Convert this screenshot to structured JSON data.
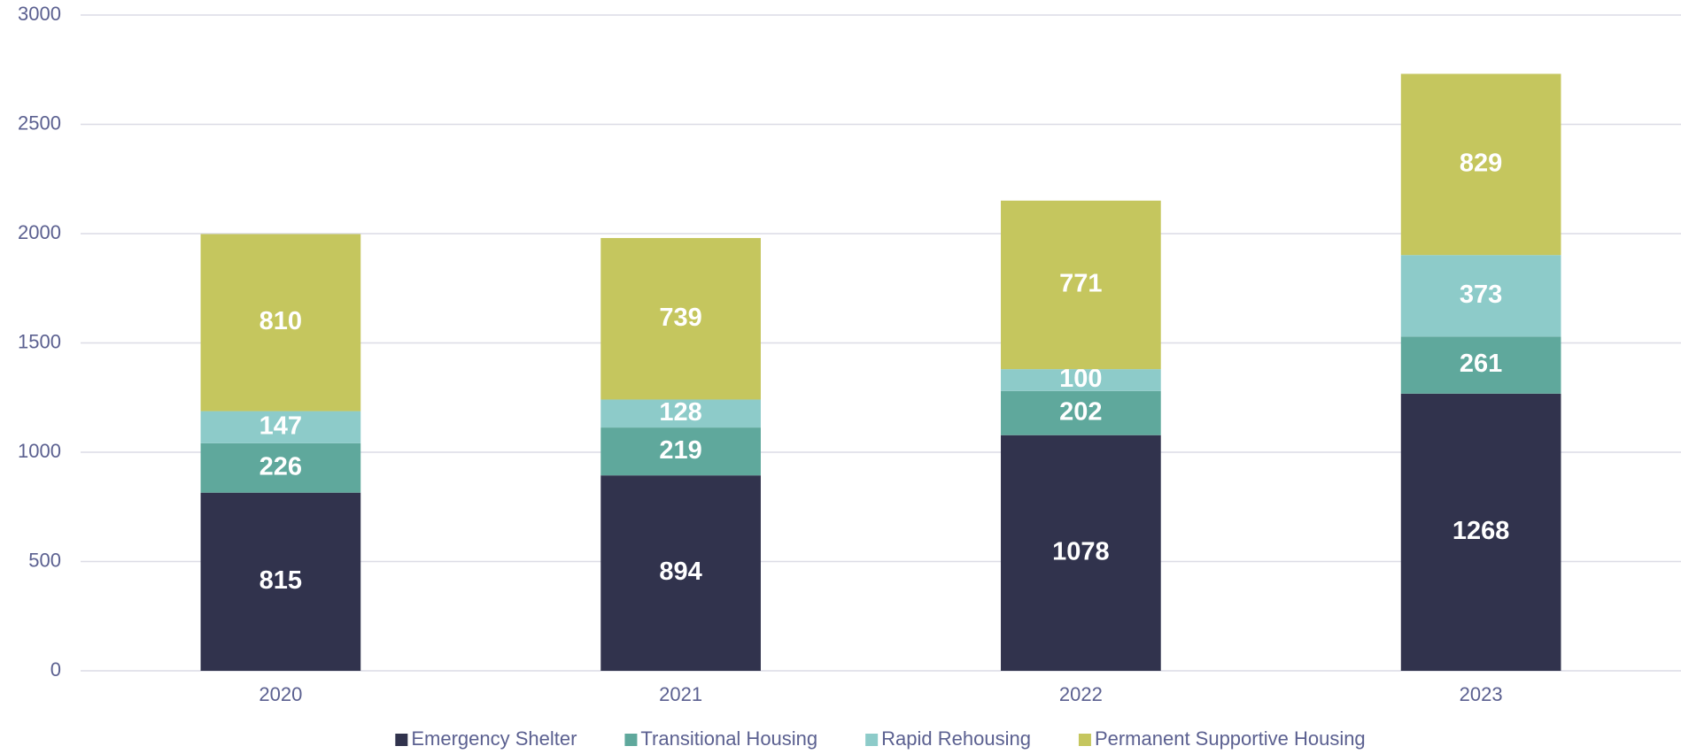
{
  "chart_data": {
    "type": "stacked_bar",
    "categories": [
      "2020",
      "2021",
      "2022",
      "2023"
    ],
    "series": [
      {
        "name": "Emergency Shelter",
        "color": "#31334d",
        "values": [
          815,
          894,
          1078,
          1268
        ]
      },
      {
        "name": "Transitional Housing",
        "color": "#5fa89c",
        "values": [
          226,
          219,
          202,
          261
        ]
      },
      {
        "name": "Rapid Rehousing",
        "color": "#8dcbc9",
        "values": [
          147,
          128,
          100,
          373
        ]
      },
      {
        "name": "Permanent Supportive Housing",
        "color": "#c5c65e",
        "values": [
          810,
          739,
          771,
          829
        ]
      }
    ],
    "ylim": [
      0,
      3000
    ],
    "yticks": [
      0,
      500,
      1000,
      1500,
      2000,
      2500,
      3000
    ],
    "grid": true,
    "legend": "bottom"
  }
}
